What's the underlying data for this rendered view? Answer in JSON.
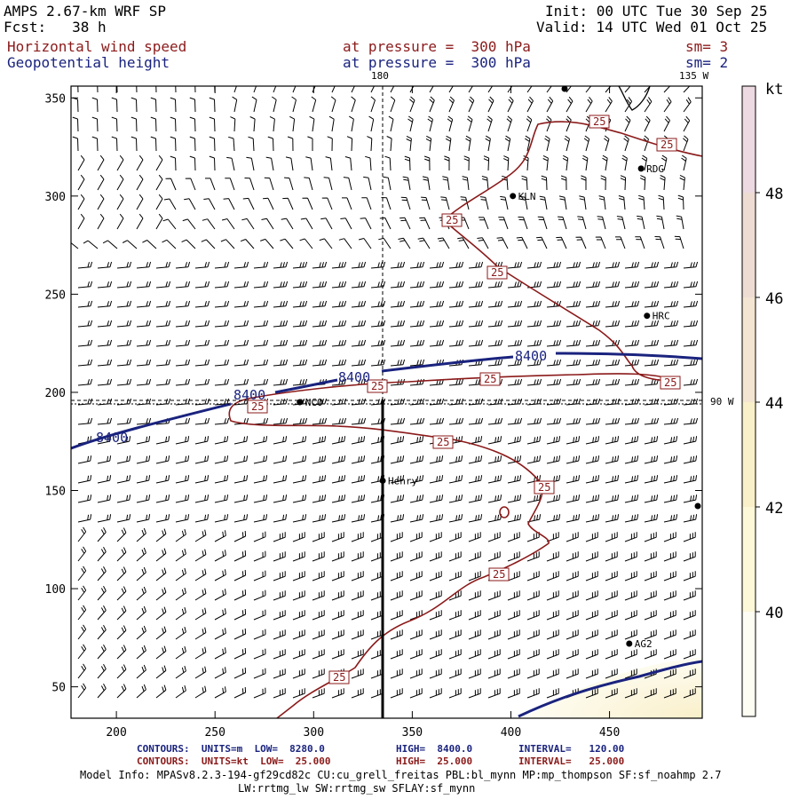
{
  "header": {
    "model": "AMPS 2.67-km WRF SP",
    "fcst": "Fcst:   38 h",
    "init": "Init: 00 UTC Tue 30 Sep 25",
    "valid": "Valid: 14 UTC Wed 01 Oct 25",
    "field1": "Horizontal wind speed",
    "field2": "Geopotential height",
    "level1": "at pressure =  300 hPa",
    "level2": "at pressure =  300 hPa",
    "sm1": "sm= 3",
    "sm2": "sm= 2"
  },
  "map": {
    "lon_top_180": "180",
    "lon_top_135w": "135 W",
    "lon_right_90w": "90 W",
    "stations": [
      {
        "name": "KLN",
        "x": 401,
        "y": 300
      },
      {
        "name": "RDG",
        "x": 466,
        "y": 314
      },
      {
        "name": "HRC",
        "x": 469,
        "y": 239
      },
      {
        "name": "NCO",
        "x": 293,
        "y": 195
      },
      {
        "name": "Henry",
        "x": 335,
        "y": 155
      },
      {
        "name": "AG2",
        "x": 460,
        "y": 72
      }
    ],
    "contour_labels_height": [
      "8400",
      "8400",
      "8400",
      "8400"
    ],
    "contour_labels_speed": [
      "25",
      "25",
      "25",
      "25",
      "25",
      "25",
      "25",
      "25",
      "25",
      "25",
      "25"
    ]
  },
  "chart_data": {
    "type": "map",
    "x_ticks": [
      200,
      250,
      300,
      350,
      400,
      450
    ],
    "y_ticks": [
      50,
      100,
      150,
      200,
      250,
      300,
      350
    ],
    "xlim": [
      177,
      497
    ],
    "ylim": [
      34,
      356
    ],
    "colorbar": {
      "unit": "kt",
      "ticks": [
        40,
        42,
        44,
        46,
        48
      ],
      "colors": [
        "#fefdf3",
        "#fdf8d8",
        "#f9efc9",
        "#f4e5d2",
        "#eedcd3",
        "#ecd9e1"
      ]
    }
  },
  "footer": {
    "l1_a": "CONTOURS:  UNITS=m  LOW=  8280.0",
    "l1_b": "HIGH=  8400.0",
    "l1_c": "INTERVAL=   120.00",
    "l2_a": "CONTOURS:  UNITS=kt  LOW=  25.000",
    "l2_b": "HIGH=  25.000",
    "l2_c": "INTERVAL=   25.000",
    "info1": "Model Info: MPASv8.2.3-194-gf29cd82c CU:cu_grell_freitas PBL:bl_mynn MP:mp_thompson SF:sf_noahmp 2.7",
    "info2": "LW:rrtmg_lw SW:rrtmg_sw SFLAY:sf_mynn"
  }
}
